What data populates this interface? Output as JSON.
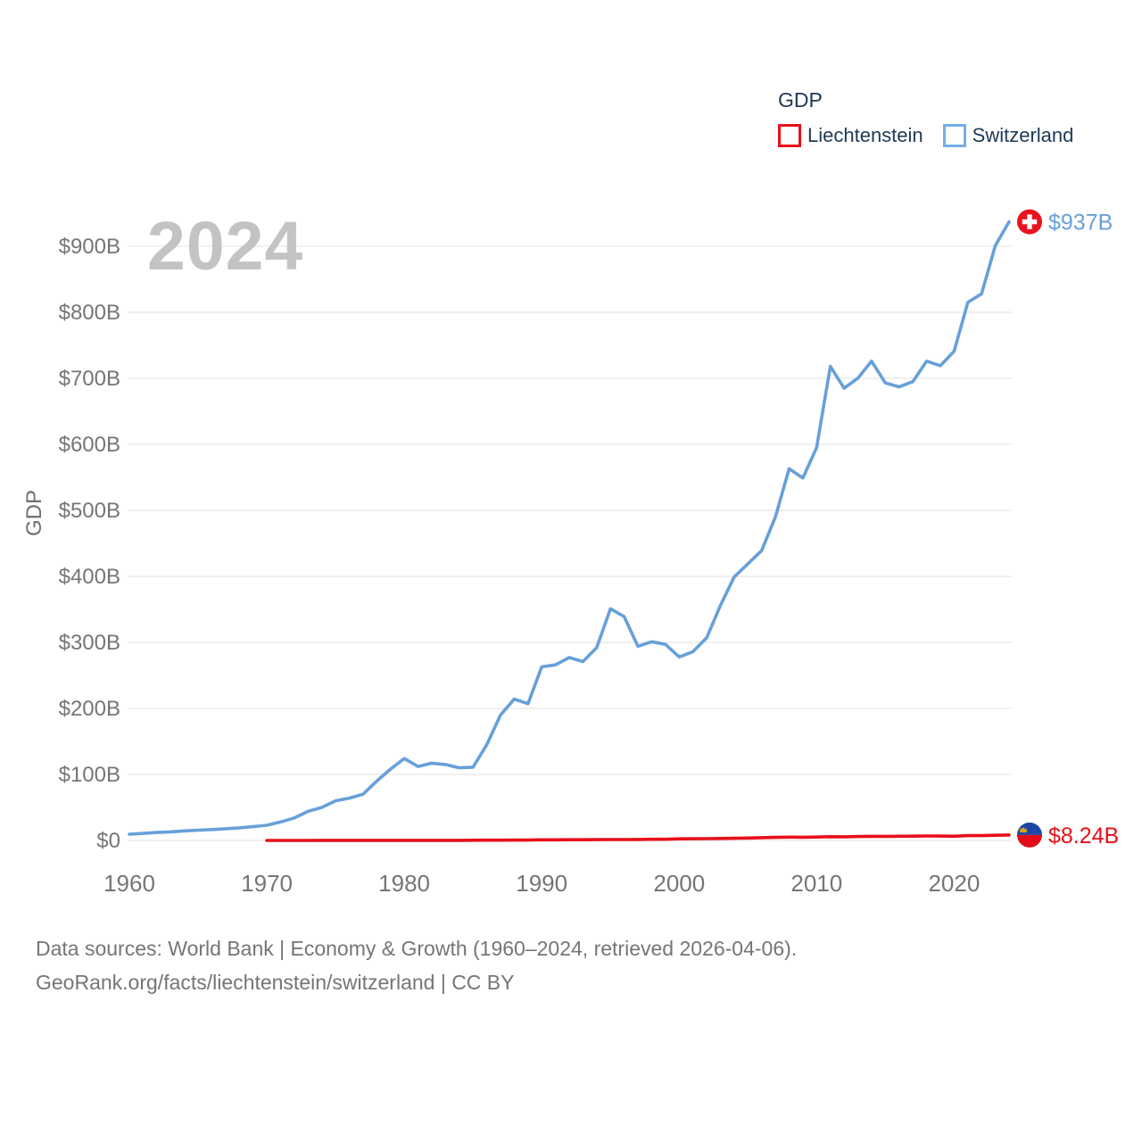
{
  "page": {
    "background": "#ffffff"
  },
  "legend": {
    "title": "GDP",
    "items": [
      {
        "label": "Liechtenstein",
        "color": "#e8101a"
      },
      {
        "label": "Switzerland",
        "color": "#73aee6"
      }
    ]
  },
  "watermark": "2024",
  "footer": {
    "line1": "Data sources: World Bank | Economy & Growth (1960–2024, retrieved 2026-04-06).",
    "line2": "GeoRank.org/facts/liechtenstein/switzerland | CC BY"
  },
  "icons": {
    "switzerland_flag": "swiss-flag-circle-icon",
    "liechtenstein_flag": "liechtenstein-flag-circle-icon"
  },
  "chart_data": {
    "type": "line",
    "title": "GDP",
    "xlabel": "",
    "ylabel": "GDP",
    "unit": "billions of USD",
    "xlim": [
      1960,
      2024
    ],
    "ylim": [
      0,
      900
    ],
    "grid": true,
    "legend_position": "top-right",
    "y_ticks": [
      {
        "value": 0,
        "label": "$0"
      },
      {
        "value": 100,
        "label": "$100B"
      },
      {
        "value": 200,
        "label": "$200B"
      },
      {
        "value": 300,
        "label": "$300B"
      },
      {
        "value": 400,
        "label": "$400B"
      },
      {
        "value": 500,
        "label": "$500B"
      },
      {
        "value": 600,
        "label": "$600B"
      },
      {
        "value": 700,
        "label": "$700B"
      },
      {
        "value": 800,
        "label": "$800B"
      },
      {
        "value": 900,
        "label": "$900B"
      }
    ],
    "x_ticks": [
      {
        "value": 1960,
        "label": "1960"
      },
      {
        "value": 1970,
        "label": "1970"
      },
      {
        "value": 1980,
        "label": "1980"
      },
      {
        "value": 1990,
        "label": "1990"
      },
      {
        "value": 2000,
        "label": "2000"
      },
      {
        "value": 2010,
        "label": "2010"
      },
      {
        "value": 2020,
        "label": "2020"
      }
    ],
    "series": [
      {
        "name": "Switzerland",
        "color": "#67a0d9",
        "start_year": 1960,
        "values": [
          9.5,
          10.7,
          12,
          13,
          14.4,
          15.5,
          16.5,
          17.7,
          19,
          21,
          23,
          28,
          34,
          44,
          50,
          60,
          64,
          70,
          90,
          108,
          124,
          112,
          117,
          115,
          110,
          111,
          145,
          190,
          214,
          207,
          263,
          266,
          277,
          271,
          292,
          351,
          339,
          294,
          301,
          297,
          278,
          286,
          307,
          356,
          399,
          419,
          439,
          490,
          563,
          549,
          595,
          718,
          685,
          700,
          726,
          693,
          687,
          695,
          726,
          719,
          741,
          815,
          828,
          901,
          937
        ]
      },
      {
        "name": "Liechtenstein",
        "color": "#e8101a",
        "start_year": 1970,
        "values": [
          0.03,
          0.04,
          0.05,
          0.06,
          0.07,
          0.09,
          0.1,
          0.11,
          0.15,
          0.17,
          0.19,
          0.18,
          0.19,
          0.19,
          0.19,
          0.25,
          0.35,
          0.45,
          0.52,
          0.55,
          0.88,
          0.95,
          1.05,
          1.1,
          1.25,
          1.4,
          1.4,
          1.45,
          1.7,
          1.8,
          2.48,
          2.6,
          2.7,
          3.0,
          3.3,
          3.7,
          4.2,
          4.6,
          5.0,
          4.8,
          5.1,
          5.7,
          5.5,
          6.0,
          6.25,
          6.27,
          6.3,
          6.5,
          6.7,
          6.6,
          6.4,
          7.3,
          7.35,
          7.8,
          8.24
        ]
      }
    ],
    "end_labels": {
      "switzerland": "$937B",
      "liechtenstein": "$8.24B"
    },
    "end_label_colors": {
      "switzerland": "#67a0d9",
      "liechtenstein": "#e8101a"
    }
  }
}
